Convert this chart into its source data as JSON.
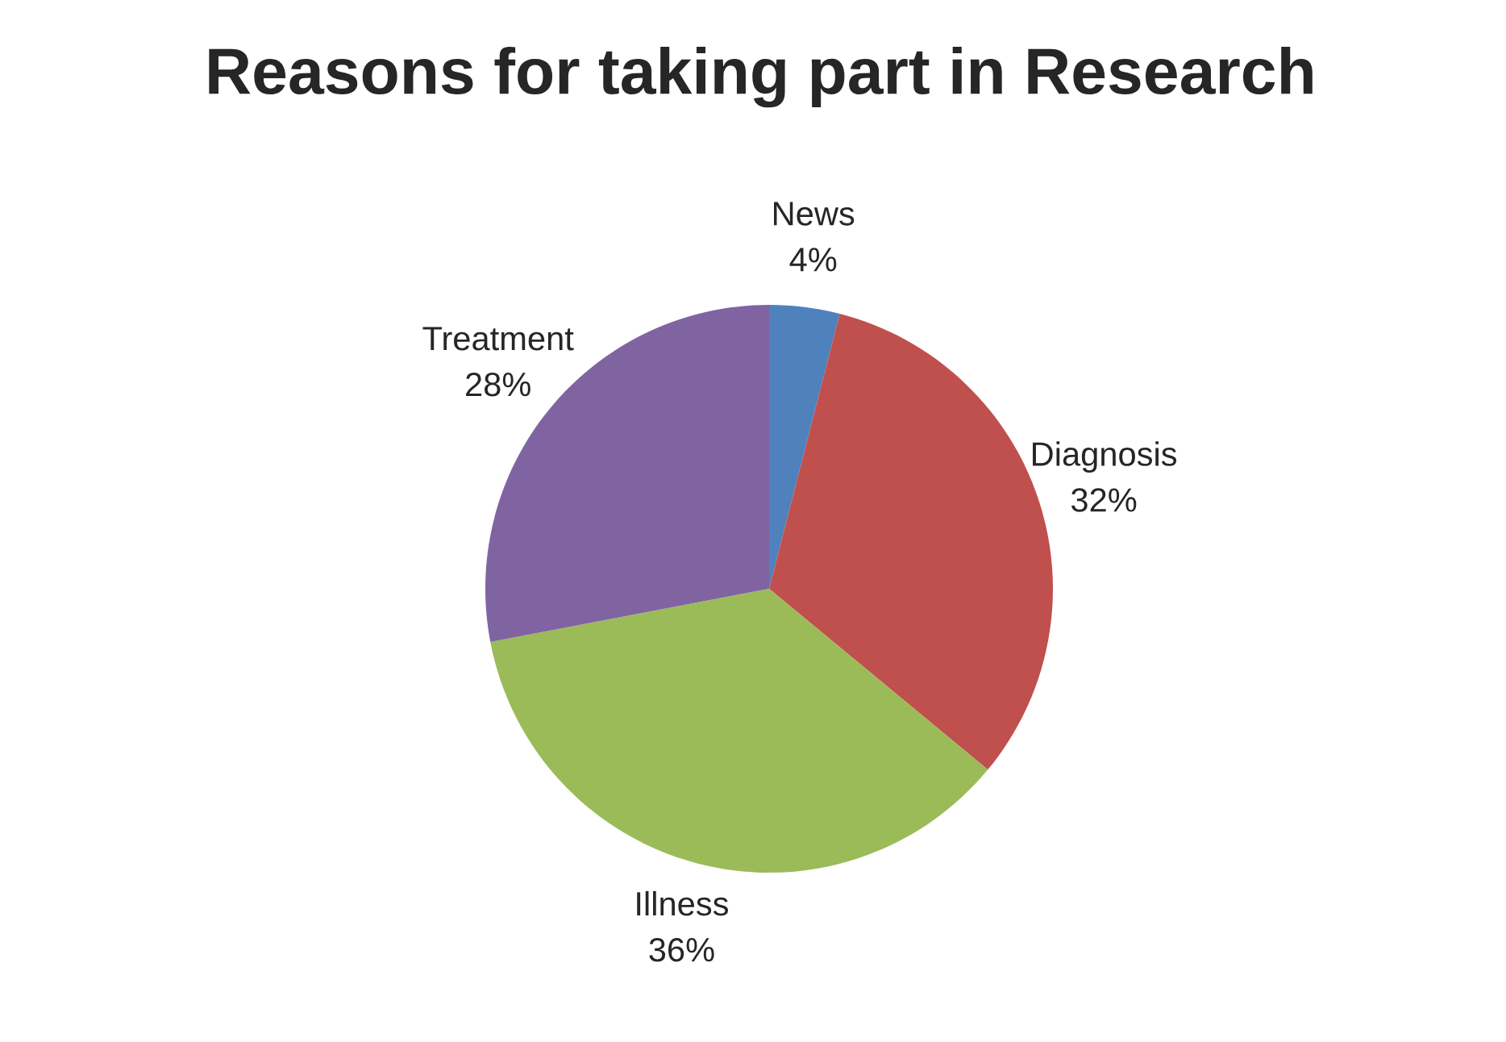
{
  "chart_data": {
    "type": "pie",
    "title": "Reasons for taking part in Research",
    "categories": [
      "News",
      "Diagnosis",
      "Illness",
      "Treatment"
    ],
    "values": [
      4,
      32,
      36,
      28
    ],
    "value_labels": [
      "4%",
      "32%",
      "36%",
      "28%"
    ],
    "colors": [
      "#4f81bd",
      "#c0504d",
      "#9bbb59",
      "#8064a2"
    ]
  }
}
